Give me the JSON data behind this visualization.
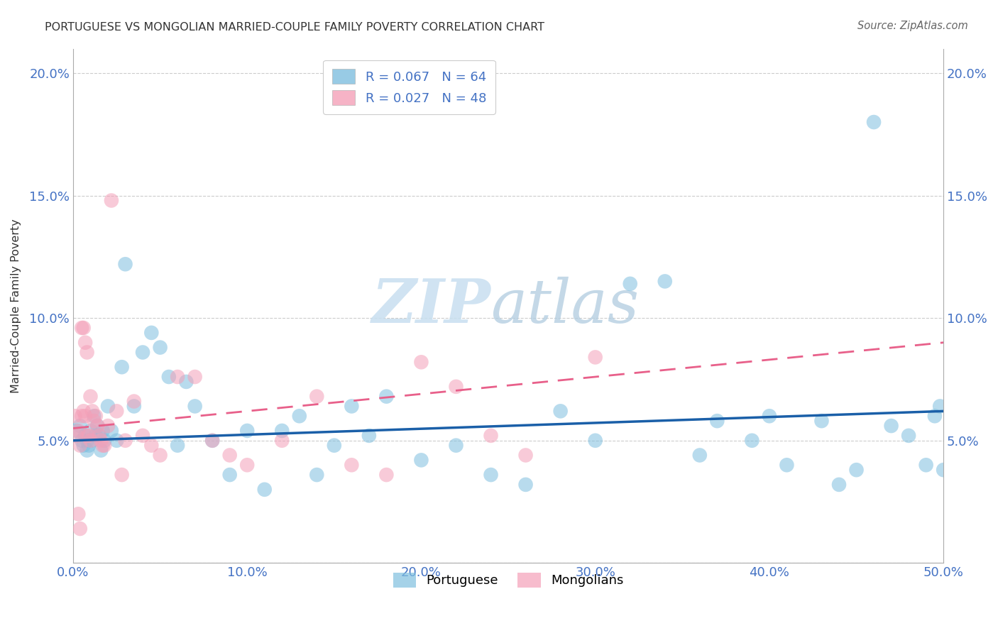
{
  "title": "PORTUGUESE VS MONGOLIAN MARRIED-COUPLE FAMILY POVERTY CORRELATION CHART",
  "source": "Source: ZipAtlas.com",
  "ylabel": "Married-Couple Family Poverty",
  "xlim": [
    0,
    0.5
  ],
  "ylim": [
    0,
    0.21
  ],
  "xticks": [
    0.0,
    0.1,
    0.2,
    0.3,
    0.4,
    0.5
  ],
  "yticks": [
    0.0,
    0.05,
    0.1,
    0.15,
    0.2
  ],
  "xticklabels": [
    "0.0%",
    "10.0%",
    "20.0%",
    "30.0%",
    "40.0%",
    "50.0%"
  ],
  "yticklabels": [
    "",
    "5.0%",
    "10.0%",
    "15.0%",
    "20.0%"
  ],
  "watermark_zip": "ZIP",
  "watermark_atlas": "atlas",
  "legend_portuguese_R": "R = 0.067",
  "legend_portuguese_N": "N = 64",
  "legend_mongolian_R": "R = 0.027",
  "legend_mongolian_N": "N = 48",
  "portuguese_color": "#7fbfdf",
  "mongolian_color": "#f4a0b8",
  "portuguese_line_color": "#1a5fa8",
  "mongolian_line_color": "#e8608a",
  "port_R": 0.067,
  "mong_R": 0.027,
  "portuguese_x": [
    0.002,
    0.004,
    0.005,
    0.006,
    0.007,
    0.008,
    0.008,
    0.009,
    0.01,
    0.011,
    0.012,
    0.013,
    0.014,
    0.015,
    0.016,
    0.017,
    0.018,
    0.02,
    0.022,
    0.025,
    0.028,
    0.03,
    0.035,
    0.04,
    0.045,
    0.05,
    0.055,
    0.06,
    0.065,
    0.07,
    0.08,
    0.09,
    0.1,
    0.11,
    0.12,
    0.13,
    0.14,
    0.15,
    0.16,
    0.17,
    0.18,
    0.2,
    0.22,
    0.24,
    0.26,
    0.28,
    0.3,
    0.32,
    0.34,
    0.36,
    0.37,
    0.39,
    0.4,
    0.41,
    0.43,
    0.44,
    0.45,
    0.46,
    0.47,
    0.48,
    0.49,
    0.495,
    0.498,
    0.5
  ],
  "portuguese_y": [
    0.054,
    0.056,
    0.05,
    0.048,
    0.052,
    0.05,
    0.046,
    0.048,
    0.054,
    0.05,
    0.06,
    0.052,
    0.056,
    0.052,
    0.046,
    0.054,
    0.05,
    0.064,
    0.054,
    0.05,
    0.08,
    0.122,
    0.064,
    0.086,
    0.094,
    0.088,
    0.076,
    0.048,
    0.074,
    0.064,
    0.05,
    0.036,
    0.054,
    0.03,
    0.054,
    0.06,
    0.036,
    0.048,
    0.064,
    0.052,
    0.068,
    0.042,
    0.048,
    0.036,
    0.032,
    0.062,
    0.05,
    0.114,
    0.115,
    0.044,
    0.058,
    0.05,
    0.06,
    0.04,
    0.058,
    0.032,
    0.038,
    0.18,
    0.056,
    0.052,
    0.04,
    0.06,
    0.064,
    0.038
  ],
  "mongolian_x": [
    0.001,
    0.002,
    0.003,
    0.003,
    0.004,
    0.004,
    0.005,
    0.005,
    0.006,
    0.006,
    0.007,
    0.007,
    0.008,
    0.008,
    0.009,
    0.01,
    0.01,
    0.011,
    0.012,
    0.013,
    0.014,
    0.015,
    0.016,
    0.017,
    0.018,
    0.02,
    0.022,
    0.025,
    0.028,
    0.03,
    0.035,
    0.04,
    0.045,
    0.05,
    0.06,
    0.07,
    0.08,
    0.09,
    0.1,
    0.12,
    0.14,
    0.16,
    0.18,
    0.2,
    0.22,
    0.24,
    0.26,
    0.3
  ],
  "mongolian_y": [
    0.06,
    0.052,
    0.054,
    0.02,
    0.048,
    0.014,
    0.06,
    0.096,
    0.096,
    0.062,
    0.09,
    0.06,
    0.086,
    0.052,
    0.052,
    0.05,
    0.068,
    0.062,
    0.058,
    0.06,
    0.056,
    0.052,
    0.05,
    0.048,
    0.048,
    0.056,
    0.148,
    0.062,
    0.036,
    0.05,
    0.066,
    0.052,
    0.048,
    0.044,
    0.076,
    0.076,
    0.05,
    0.044,
    0.04,
    0.05,
    0.068,
    0.04,
    0.036,
    0.082,
    0.072,
    0.052,
    0.044,
    0.084
  ]
}
